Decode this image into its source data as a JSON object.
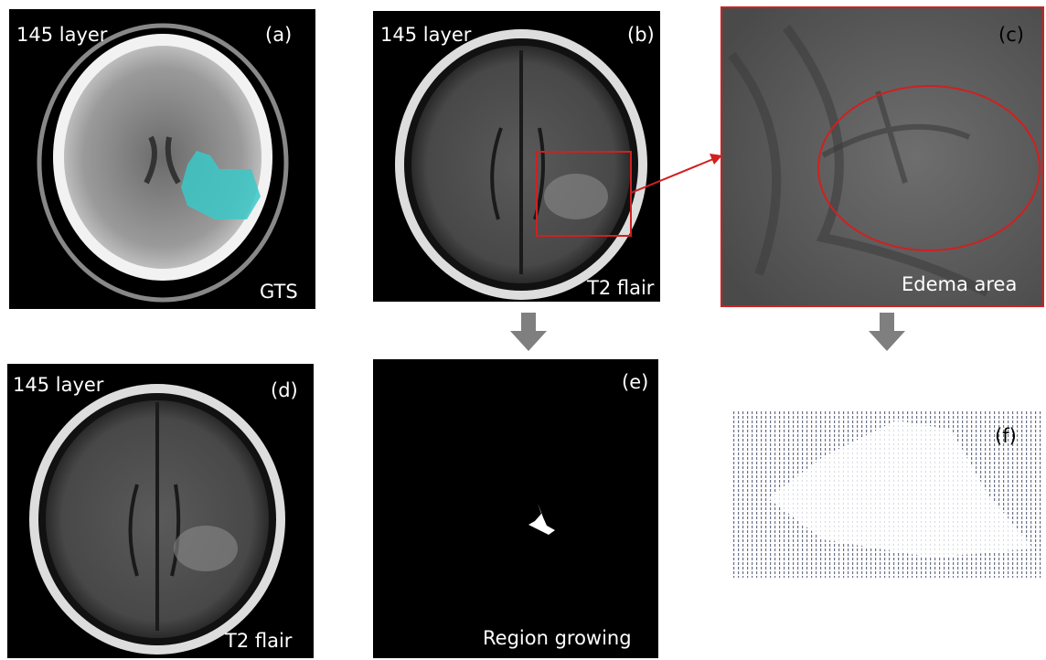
{
  "panels": [
    {
      "label": "(a)",
      "top_text": "145 layer",
      "bottom_text": "GTS"
    },
    {
      "label": "(b)",
      "top_text": "145 layer",
      "bottom_text": "T2 flair"
    },
    {
      "label": "(c)",
      "bottom_text": "Edema area"
    },
    {
      "label": "(d)",
      "top_text": "145 layer",
      "bottom_text": "T2 flair"
    },
    {
      "label": "(e)",
      "bottom_text": "Region growing"
    },
    {
      "label": "(f)"
    }
  ]
}
